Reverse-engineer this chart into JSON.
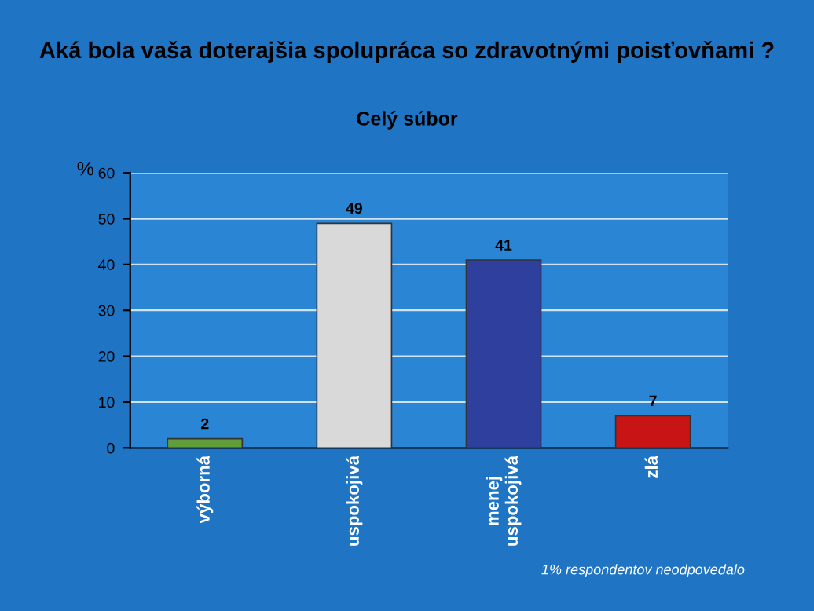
{
  "chart_data": {
    "type": "bar",
    "title": "Aká bola vaša doterajšia spolupráca so zdravotnými poisťovňami ?",
    "subtitle": "Celý súbor",
    "ylabel": "%",
    "categories": [
      "výborná",
      "uspokojivá",
      "menej\nuspokojivá",
      "zlá"
    ],
    "values": [
      2,
      49,
      41,
      7
    ],
    "colors": [
      "#5f9e3a",
      "#d9d9d9",
      "#2f3f9e",
      "#c81414"
    ],
    "ylim": [
      0,
      60
    ],
    "yticks": [
      0,
      10,
      20,
      30,
      40,
      50,
      60
    ],
    "grid": "y",
    "data_labels": true,
    "annotations": [
      "1% respondentov neodpovedalo"
    ]
  }
}
